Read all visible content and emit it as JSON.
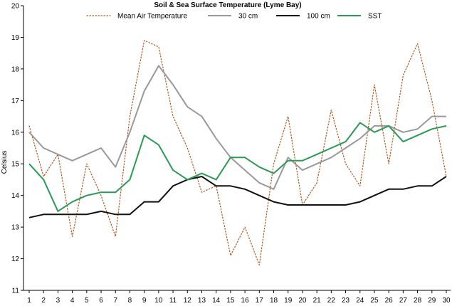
{
  "chart_data": {
    "type": "line",
    "title": "Soil & Sea Surface Temperature (Lyme Bay)",
    "xlabel": "",
    "ylabel": "Celsius",
    "xlim": [
      1,
      30
    ],
    "ylim": [
      11,
      20
    ],
    "x": [
      1,
      2,
      3,
      4,
      5,
      6,
      7,
      8,
      9,
      10,
      11,
      12,
      13,
      14,
      15,
      16,
      17,
      18,
      19,
      20,
      21,
      22,
      23,
      24,
      25,
      26,
      27,
      28,
      29,
      30
    ],
    "series": [
      {
        "name": "Mean Air Temperature",
        "color": "#b5541c",
        "style": "dotted",
        "values": [
          16.2,
          14.6,
          15.3,
          12.7,
          15.0,
          14.0,
          12.7,
          16.5,
          18.9,
          18.7,
          16.5,
          15.5,
          14.1,
          14.3,
          12.1,
          13.0,
          11.8,
          15.0,
          16.5,
          13.7,
          14.4,
          16.7,
          15.0,
          14.3,
          17.5,
          15.0,
          17.8,
          18.8,
          17.0,
          14.6
        ]
      },
      {
        "name": "30 cm",
        "color": "#999999",
        "style": "solid",
        "values": [
          16.0,
          15.5,
          15.3,
          15.1,
          15.3,
          15.5,
          14.9,
          16.0,
          17.3,
          18.1,
          17.5,
          16.8,
          16.5,
          15.8,
          15.2,
          14.8,
          14.4,
          14.2,
          15.2,
          14.8,
          15.0,
          15.2,
          15.5,
          15.8,
          16.2,
          16.2,
          16.0,
          16.1,
          16.5,
          16.5
        ]
      },
      {
        "name": "100 cm",
        "color": "#111111",
        "style": "solid",
        "values": [
          13.3,
          13.4,
          13.4,
          13.4,
          13.4,
          13.5,
          13.4,
          13.4,
          13.8,
          13.8,
          14.3,
          14.5,
          14.6,
          14.3,
          14.3,
          14.2,
          14.0,
          13.8,
          13.7,
          13.7,
          13.7,
          13.7,
          13.7,
          13.8,
          14.0,
          14.2,
          14.2,
          14.3,
          14.3,
          14.6
        ]
      },
      {
        "name": "SST",
        "color": "#2b9a55",
        "style": "solid",
        "values": [
          15.0,
          14.5,
          13.5,
          13.8,
          14.0,
          14.1,
          14.1,
          14.5,
          15.9,
          15.6,
          14.8,
          14.5,
          14.7,
          14.5,
          15.2,
          15.2,
          14.9,
          14.7,
          15.1,
          15.1,
          15.3,
          15.5,
          15.7,
          16.3,
          16.0,
          16.2,
          15.7,
          15.9,
          16.1,
          16.2
        ]
      }
    ],
    "yticks": [
      11,
      12,
      13,
      14,
      15,
      16,
      17,
      18,
      19,
      20
    ],
    "grid": false,
    "legend": "top"
  }
}
